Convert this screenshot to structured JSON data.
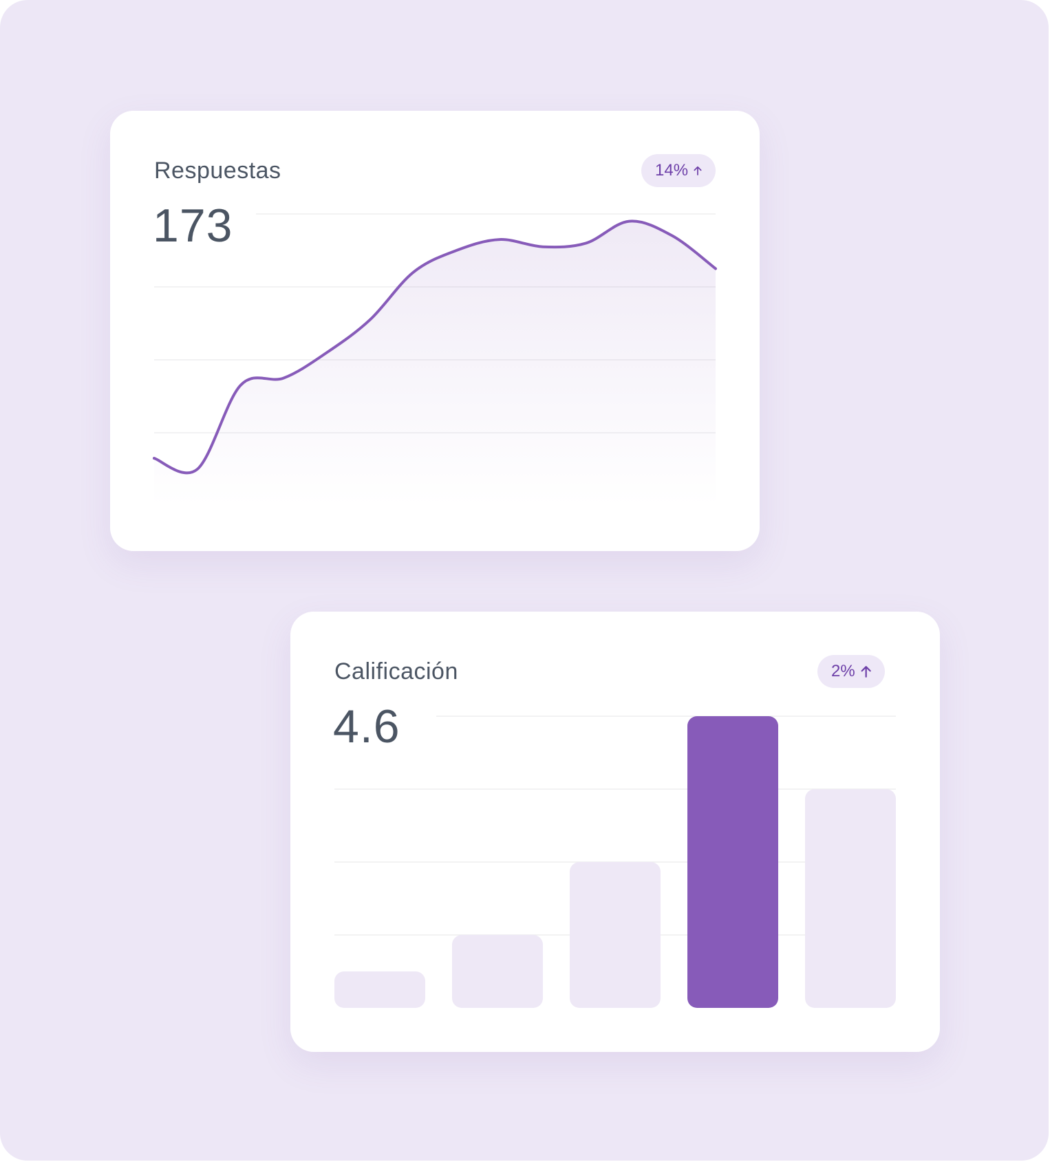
{
  "colors": {
    "background": "#ede7f6",
    "card": "#ffffff",
    "accent": "#875bb9",
    "bar_muted": "#eee8f6",
    "text": "#4b5563",
    "badge_text": "#6d3fa8"
  },
  "cards": {
    "responses": {
      "title": "Respuestas",
      "value": "173",
      "badge": {
        "text": "14%",
        "icon": "arrow-up-icon"
      }
    },
    "rating": {
      "title": "Calificación",
      "value": "4.6",
      "badge": {
        "text": "2%",
        "icon": "arrow-up-icon"
      }
    }
  },
  "chart_data": [
    {
      "type": "area",
      "title": "Respuestas",
      "x": [
        0,
        1,
        2,
        3,
        4,
        5,
        6,
        7,
        8,
        9,
        10,
        11,
        12,
        13
      ],
      "values": [
        13,
        10,
        33,
        35,
        42,
        51,
        64,
        70,
        73,
        71,
        72,
        78,
        74,
        65
      ],
      "ylim": [
        0,
        80
      ],
      "grid": true
    },
    {
      "type": "bar",
      "title": "Calificación",
      "categories": [
        "1",
        "2",
        "3",
        "4",
        "5"
      ],
      "values": [
        10,
        20,
        40,
        80,
        60
      ],
      "highlight_index": 3,
      "ylim": [
        0,
        80
      ],
      "grid": true
    }
  ]
}
